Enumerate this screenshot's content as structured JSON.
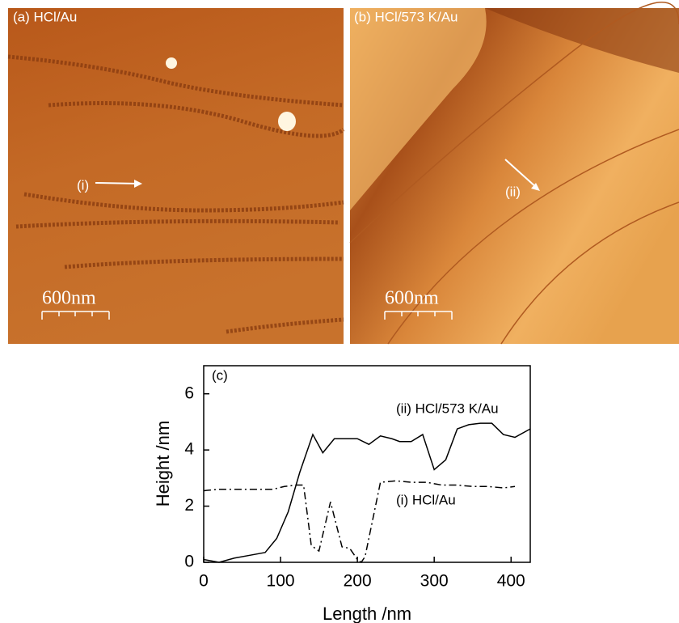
{
  "panels": [
    {
      "label": "(a) HCl/Au",
      "marker": "(i)",
      "scale": "600nm"
    },
    {
      "label": "(b) HCl/573 K/Au",
      "marker": "(ii)",
      "scale": "600nm"
    }
  ],
  "chart_data": {
    "type": "line",
    "panel_label": "(c)",
    "x_label": "Length /nm",
    "y_label": "Height /nm",
    "xlim": [
      0,
      425
    ],
    "ylim": [
      0,
      7
    ],
    "xticks": [
      0,
      100,
      200,
      300,
      400
    ],
    "yticks": [
      0,
      2,
      4,
      6
    ],
    "series": [
      {
        "name": "(ii) HCl/573 K/Au",
        "color": "#000000",
        "dash": "solid",
        "x": [
          0,
          20,
          40,
          60,
          80,
          95,
          110,
          125,
          142,
          155,
          170,
          185,
          200,
          215,
          230,
          245,
          255,
          270,
          285,
          300,
          315,
          330,
          345,
          360,
          375,
          390,
          405,
          425
        ],
        "values": [
          0.1,
          0,
          0.15,
          0.25,
          0.35,
          0.85,
          1.8,
          3.2,
          4.55,
          3.9,
          4.4,
          4.4,
          4.4,
          4.2,
          4.5,
          4.4,
          4.3,
          4.3,
          4.55,
          3.3,
          3.65,
          4.75,
          4.9,
          4.95,
          4.95,
          4.55,
          4.45,
          4.75
        ]
      },
      {
        "name": "(i) HCl/Au",
        "color": "#000000",
        "dash": "dash-dot",
        "x": [
          0,
          20,
          40,
          60,
          80,
          90,
          105,
          120,
          130,
          140,
          150,
          165,
          180,
          190,
          200,
          205,
          210,
          230,
          250,
          270,
          290,
          310,
          330,
          350,
          370,
          390,
          405
        ],
        "values": [
          2.55,
          2.6,
          2.6,
          2.6,
          2.6,
          2.6,
          2.7,
          2.75,
          2.75,
          0.6,
          0.4,
          2.15,
          0.55,
          0.5,
          0.1,
          0,
          0.2,
          2.85,
          2.9,
          2.85,
          2.85,
          2.75,
          2.75,
          2.7,
          2.7,
          2.65,
          2.7
        ]
      }
    ]
  }
}
